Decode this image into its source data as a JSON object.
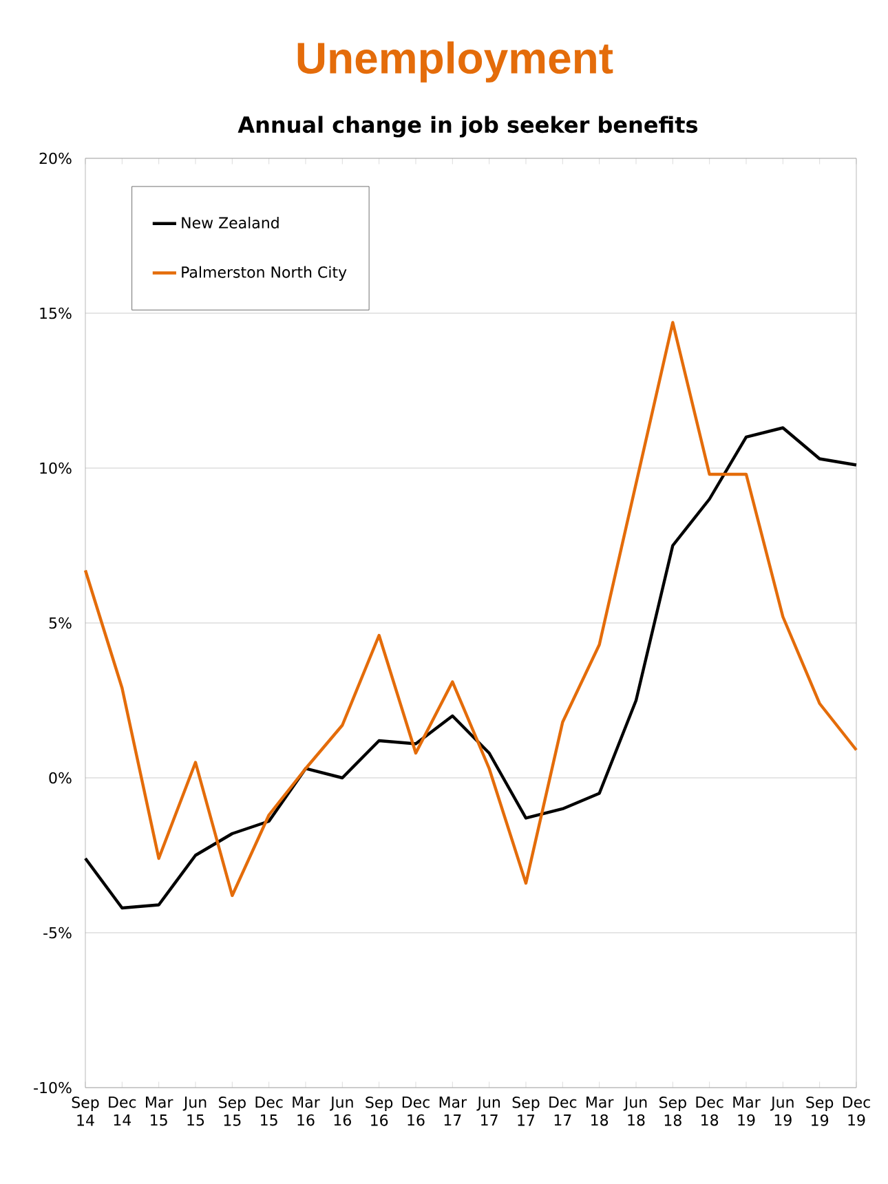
{
  "chart_data": {
    "type": "line",
    "title": "Unemployment",
    "subtitle": "Annual change in job seeker benefits",
    "categories": [
      "Sep 14",
      "Dec 14",
      "Mar 15",
      "Jun 15",
      "Sep 15",
      "Dec 15",
      "Mar 16",
      "Jun 16",
      "Sep 16",
      "Dec 16",
      "Mar 17",
      "Jun 17",
      "Sep 17",
      "Dec 17",
      "Mar 18",
      "Jun 18",
      "Sep 18",
      "Dec 18",
      "Mar 19",
      "Jun 19",
      "Sep 19",
      "Dec 19"
    ],
    "series": [
      {
        "name": "New Zealand",
        "color": "#000000",
        "values": [
          -2.6,
          -4.2,
          -4.1,
          -2.5,
          -1.8,
          -1.4,
          0.3,
          0.0,
          1.2,
          1.1,
          2.0,
          0.8,
          -1.3,
          -1.0,
          -0.5,
          2.5,
          7.5,
          9.0,
          11.0,
          11.3,
          10.3,
          10.1
        ]
      },
      {
        "name": "Palmerston North City",
        "color": "#e46c0a",
        "values": [
          6.7,
          2.9,
          -2.6,
          0.5,
          -3.8,
          -1.2,
          0.3,
          1.7,
          4.6,
          0.8,
          3.1,
          0.3,
          -3.4,
          1.8,
          4.3,
          9.5,
          14.7,
          9.8,
          9.8,
          5.2,
          2.4,
          0.9
        ]
      }
    ],
    "ylim": [
      -10,
      20
    ],
    "yticks": [
      {
        "value": -10,
        "label": "-10%"
      },
      {
        "value": -5,
        "label": "-5%"
      },
      {
        "value": 0,
        "label": "0%"
      },
      {
        "value": 5,
        "label": "5%"
      },
      {
        "value": 10,
        "label": "10%"
      },
      {
        "value": 15,
        "label": "15%"
      },
      {
        "value": 20,
        "label": "20%"
      }
    ],
    "grid": "y",
    "legend": "top left",
    "marker": "none",
    "line_style": "solid"
  }
}
